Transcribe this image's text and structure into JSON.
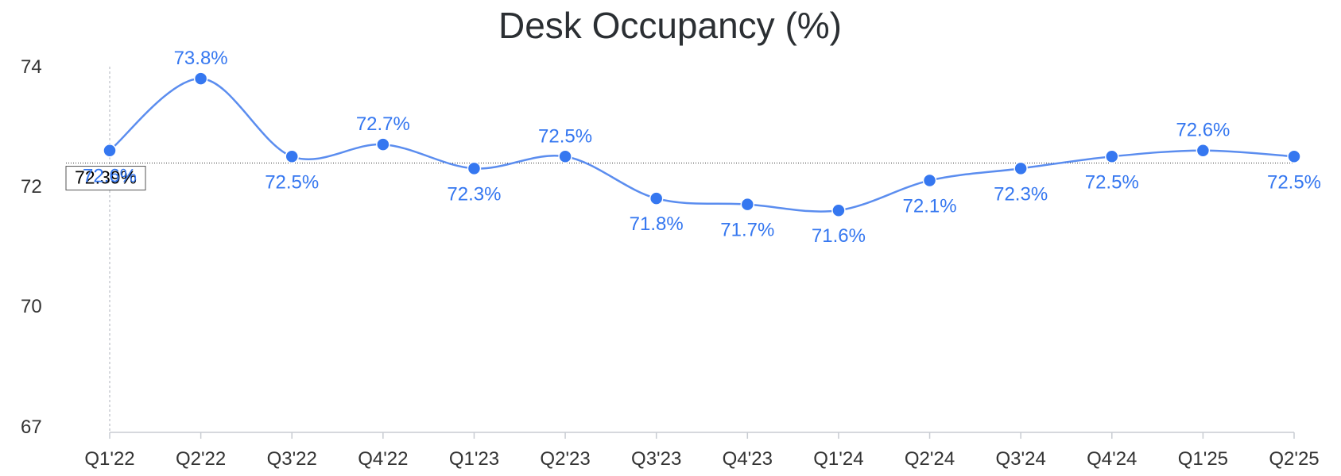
{
  "chart_data": {
    "type": "line",
    "title": "Desk Occupancy (%)",
    "xlabel": "",
    "ylabel": "",
    "categories": [
      "Q1'22",
      "Q2'22",
      "Q3'22",
      "Q4'22",
      "Q1'23",
      "Q2'23",
      "Q3'23",
      "Q4'23",
      "Q1'24",
      "Q2'24",
      "Q3'24",
      "Q4'24",
      "Q1'25",
      "Q2'25"
    ],
    "series": [
      {
        "values": [
          72.6,
          73.8,
          72.5,
          72.7,
          72.3,
          72.5,
          71.8,
          71.7,
          71.6,
          72.1,
          72.3,
          72.5,
          72.6,
          72.5
        ],
        "data_labels": [
          "72.6%",
          "73.8%",
          "72.5%",
          "72.7%",
          "72.3%",
          "72.5%",
          "71.8%",
          "71.7%",
          "71.6%",
          "72.1%",
          "72.3%",
          "72.5%",
          "72.6%",
          "72.5%"
        ]
      }
    ],
    "y_ticks": [
      {
        "value": 74,
        "label": "74"
      },
      {
        "value": 72,
        "label": "72"
      },
      {
        "value": 70,
        "label": "70"
      },
      {
        "value": 67,
        "label": "67"
      }
    ],
    "ylim": [
      66,
      75
    ],
    "y_scale": "nonlinear (tick spacing equal for 74, 72, 70, 67)",
    "average": {
      "value": 72.39,
      "label": "72.39%"
    },
    "grid": false,
    "legend": "none",
    "colors": {
      "line": "#5b8def",
      "marker": "#3577f0",
      "label": "#3577f0",
      "axis": "#c8ccd2",
      "average_line": "#333333"
    }
  }
}
